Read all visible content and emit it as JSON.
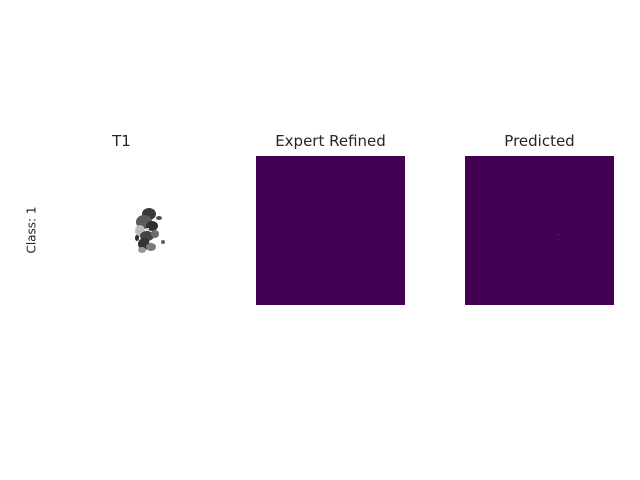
{
  "figure": {
    "row_label": "Class: 1",
    "panels": [
      {
        "title": "T1",
        "content": "grayscale-brain-slice"
      },
      {
        "title": "Expert Refined",
        "content": "segmentation-mask-empty"
      },
      {
        "title": "Predicted",
        "content": "segmentation-mask-near-empty"
      }
    ]
  },
  "colors": {
    "mask_background": "#440154",
    "background": "#ffffff",
    "text": "#262626"
  }
}
